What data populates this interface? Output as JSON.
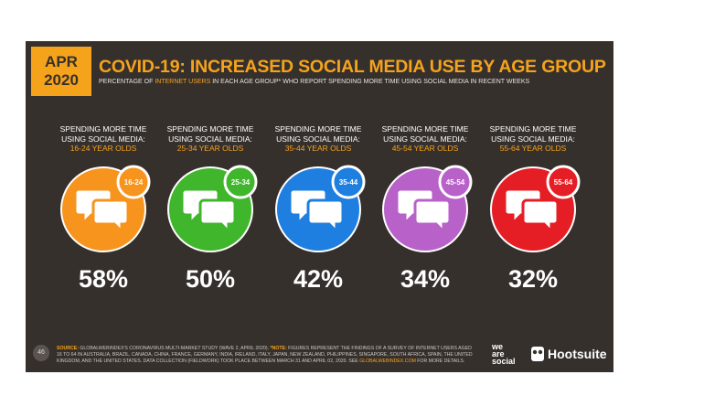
{
  "header": {
    "month": "APR",
    "year": "2020",
    "title": "COVID-19: INCREASED SOCIAL MEDIA USE BY AGE GROUP",
    "subtitle_parts": [
      "PERCENTAGE OF ",
      "INTERNET USERS",
      " IN EACH AGE GROUP* WHO REPORT SPENDING MORE TIME USING SOCIAL MEDIA IN RECENT WEEKS"
    ]
  },
  "groups": [
    {
      "line1": "SPENDING MORE TIME",
      "line2": "USING SOCIAL MEDIA:",
      "age": "16-24 YEAR OLDS",
      "badge": "16-24",
      "value": "58%",
      "color": "#f7941d"
    },
    {
      "line1": "SPENDING MORE TIME",
      "line2": "USING SOCIAL MEDIA:",
      "age": "25-34 YEAR OLDS",
      "badge": "25-34",
      "value": "50%",
      "color": "#3fb62c"
    },
    {
      "line1": "SPENDING MORE TIME",
      "line2": "USING SOCIAL MEDIA:",
      "age": "35-44 YEAR OLDS",
      "badge": "35-44",
      "value": "42%",
      "color": "#1f7fe0"
    },
    {
      "line1": "SPENDING MORE TIME",
      "line2": "USING SOCIAL MEDIA:",
      "age": "45-54 YEAR OLDS",
      "badge": "45-54",
      "value": "34%",
      "color": "#b862c9"
    },
    {
      "line1": "SPENDING MORE TIME",
      "line2": "USING SOCIAL MEDIA:",
      "age": "55-64 YEAR OLDS",
      "badge": "55-64",
      "value": "32%",
      "color": "#e51e25"
    }
  ],
  "footer": {
    "page": "46",
    "source_label": "SOURCE:",
    "source_text": " GLOBALWEBINDEX'S CORONAVIRUS MULTI-MARKET STUDY (WAVE 2, APRIL 2020). ",
    "note_label": "*NOTE:",
    "note_text": " FIGURES REPRESENT THE FINDINGS OF A SURVEY OF INTERNET USERS AGED 16 TO 64 IN AUSTRALIA, BRAZIL, CANADA, CHINA, FRANCE, GERMANY, INDIA, IRELAND, ITALY, JAPAN, NEW ZEALAND, PHILIPPINES, SINGAPORE, SOUTH AFRICA, SPAIN, THE UNITED KINGDOM, AND THE UNITED STATES. DATA COLLECTION (FIELDWORK) TOOK PLACE BETWEEN MARCH 31 AND APRIL 02, 2020. SEE ",
    "link": "GLOBALWEBINDEX.COM",
    "tail": " FOR MORE DETAILS.",
    "logo1": [
      "we",
      "are",
      "social"
    ],
    "logo2": "Hootsuite"
  }
}
